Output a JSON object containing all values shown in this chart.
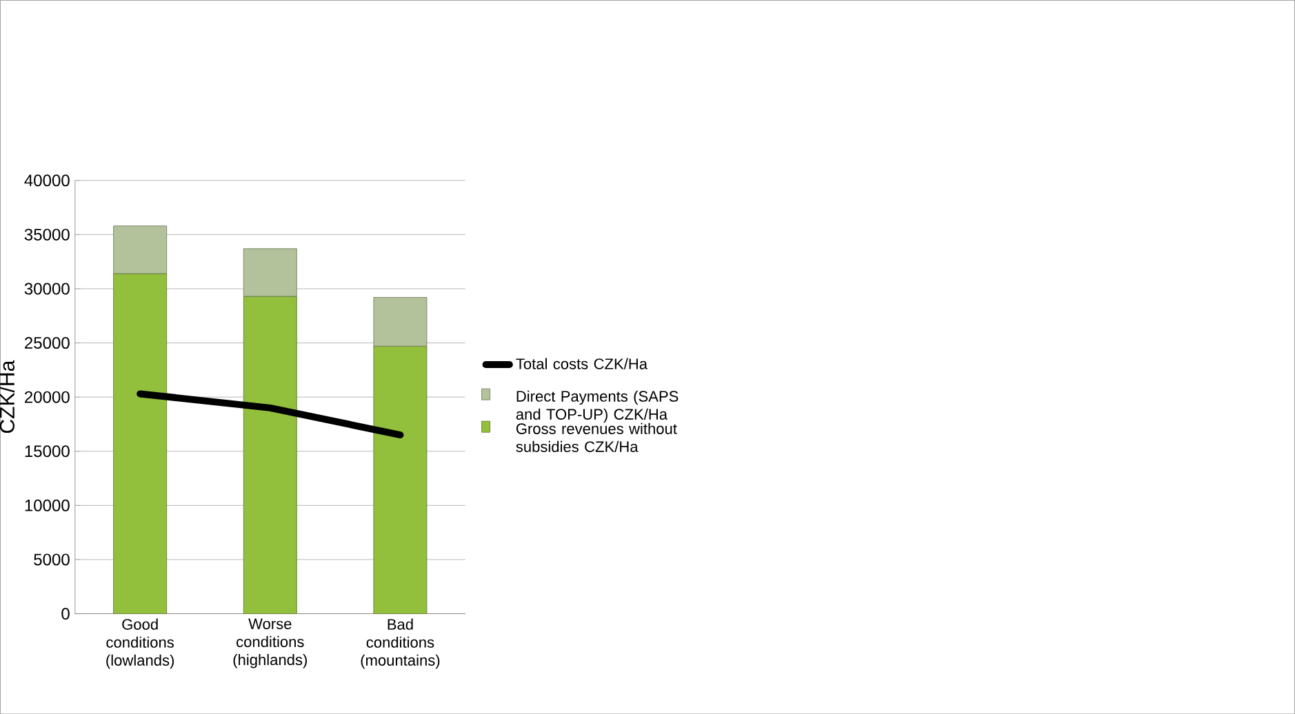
{
  "chart_data": {
    "type": "bar",
    "stacked": true,
    "ylabel": "CZK/Ha",
    "categories": [
      "Good conditions (lowlands)",
      "Worse conditions (highlands)",
      "Bad conditions (mountains)"
    ],
    "series": [
      {
        "name": "Gross revenues without subsidies CZK/Ha",
        "color": "#92c03c",
        "values": [
          31400,
          29300,
          24700
        ]
      },
      {
        "name": "Direct Payments (SAPS and TOP-UP) CZK/Ha",
        "color": "#b3c29a",
        "values": [
          4400,
          4400,
          4500
        ]
      },
      {
        "name": "Total costs CZK/Ha",
        "type": "line",
        "color": "#000000",
        "values": [
          20300,
          19000,
          16500
        ]
      }
    ],
    "ylim": [
      0,
      40000
    ],
    "yticks": [
      0,
      5000,
      10000,
      15000,
      20000,
      25000,
      30000,
      35000,
      40000
    ],
    "grid": "y",
    "legend": "right"
  }
}
